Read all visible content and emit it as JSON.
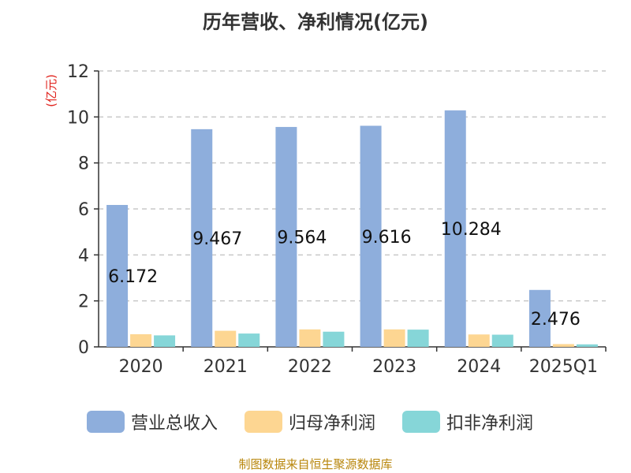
{
  "title": "历年营收、净利情况(亿元)",
  "source": "制图数据来自恒生聚源数据库",
  "chart_data": {
    "type": "bar",
    "title": "历年营收、净利情况(亿元)",
    "ylabel": "(亿元)",
    "ylim": [
      0,
      12
    ],
    "yticks": [
      0,
      2,
      4,
      6,
      8,
      10,
      12
    ],
    "grid": true,
    "legend_position": "bottom",
    "categories": [
      "2020",
      "2021",
      "2022",
      "2023",
      "2024",
      "2025Q1"
    ],
    "series": [
      {
        "name": "营业总收入",
        "color": "#8eaedc",
        "values": [
          6.172,
          9.467,
          9.564,
          9.616,
          10.284,
          2.476
        ]
      },
      {
        "name": "归母净利润",
        "color": "#fdd692",
        "values": [
          0.55,
          0.7,
          0.76,
          0.76,
          0.54,
          0.12
        ]
      },
      {
        "name": "扣非净利润",
        "color": "#86d6d8",
        "values": [
          0.5,
          0.58,
          0.66,
          0.75,
          0.53,
          0.11
        ]
      }
    ],
    "data_labels": [
      "6.172",
      "9.467",
      "9.564",
      "9.616",
      "10.284",
      "2.476"
    ]
  }
}
